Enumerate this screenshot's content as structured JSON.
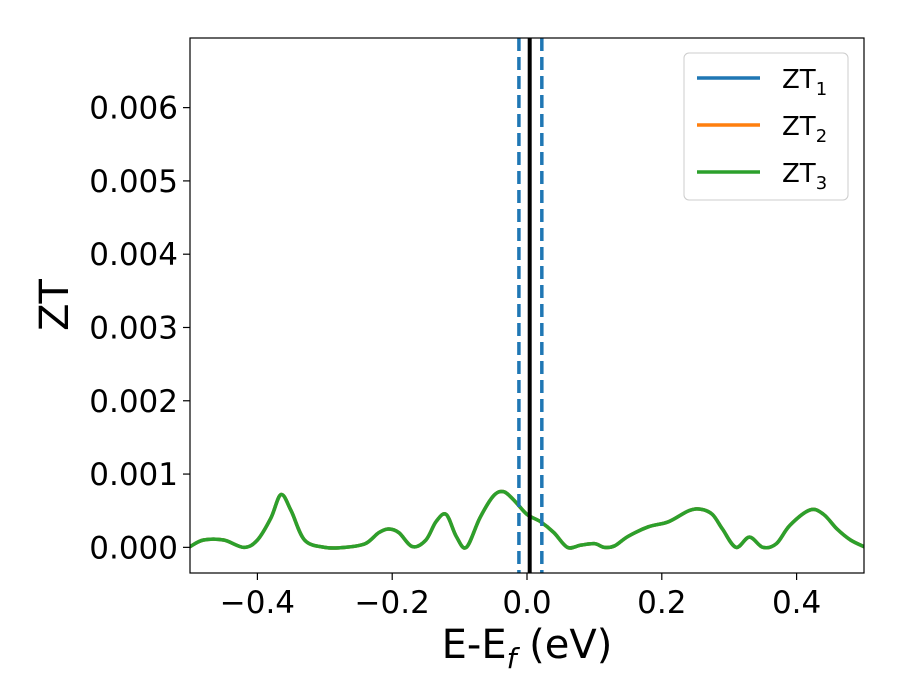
{
  "chart_data": {
    "type": "line",
    "title": "",
    "xlabel": {
      "main": "E-E",
      "sub": "f",
      "tail": " (eV)"
    },
    "ylabel": "ZT",
    "xlim": [
      -0.5,
      0.5
    ],
    "ylim": [
      -0.00035,
      0.00695
    ],
    "x_ticks": [
      -0.4,
      -0.2,
      0.0,
      0.2,
      0.4
    ],
    "x_tick_labels": [
      "−0.4",
      "−0.2",
      "0.0",
      "0.2",
      "0.4"
    ],
    "y_ticks": [
      0,
      0.001,
      0.002,
      0.003,
      0.004,
      0.005,
      0.006
    ],
    "y_tick_labels": [
      "0.000",
      "0.001",
      "0.002",
      "0.003",
      "0.004",
      "0.005",
      "0.006"
    ],
    "grid": false,
    "legend_position": "top-right",
    "series": [
      {
        "name": "ZT",
        "sub": "1",
        "color": "#1f77b4",
        "x": [
          -0.5,
          -0.48,
          -0.45,
          -0.42,
          -0.4,
          -0.38,
          -0.365,
          -0.35,
          -0.33,
          -0.3,
          -0.27,
          -0.24,
          -0.22,
          -0.205,
          -0.19,
          -0.17,
          -0.15,
          -0.135,
          -0.12,
          -0.105,
          -0.09,
          -0.07,
          -0.05,
          -0.035,
          -0.02,
          0.0,
          0.02,
          0.04,
          0.06,
          0.08,
          0.1,
          0.115,
          0.13,
          0.15,
          0.18,
          0.21,
          0.24,
          0.258,
          0.275,
          0.29,
          0.31,
          0.33,
          0.35,
          0.37,
          0.39,
          0.42,
          0.44,
          0.46,
          0.48,
          0.5
        ],
        "y": [
          1e-05,
          0.0001,
          0.0001,
          0.0,
          0.0001,
          0.0004,
          0.00072,
          0.0005,
          0.0001,
          0.0,
          0.0,
          5e-05,
          0.0002,
          0.00025,
          0.0002,
          1e-05,
          0.0001,
          0.00035,
          0.00045,
          0.00015,
          0.0,
          0.0004,
          0.0007,
          0.00076,
          0.00065,
          0.00045,
          0.00035,
          0.0002,
          0.0,
          3e-05,
          5e-05,
          0.0,
          2e-05,
          0.00015,
          0.00028,
          0.00035,
          0.0005,
          0.00052,
          0.00045,
          0.00025,
          0.0,
          0.00014,
          0.0,
          5e-05,
          0.0003,
          0.00051,
          0.00045,
          0.00025,
          0.0001,
          1e-05
        ]
      },
      {
        "name": "ZT",
        "sub": "2",
        "color": "#ff7f0e",
        "x": [
          -0.5,
          -0.48,
          -0.45,
          -0.42,
          -0.4,
          -0.38,
          -0.365,
          -0.35,
          -0.33,
          -0.3,
          -0.27,
          -0.24,
          -0.22,
          -0.205,
          -0.19,
          -0.17,
          -0.15,
          -0.135,
          -0.12,
          -0.105,
          -0.09,
          -0.07,
          -0.05,
          -0.035,
          -0.02,
          0.0,
          0.02,
          0.04,
          0.06,
          0.08,
          0.1,
          0.115,
          0.13,
          0.15,
          0.18,
          0.21,
          0.24,
          0.258,
          0.275,
          0.29,
          0.31,
          0.33,
          0.35,
          0.37,
          0.39,
          0.42,
          0.44,
          0.46,
          0.48,
          0.5
        ],
        "y": [
          1e-05,
          0.0001,
          0.0001,
          0.0,
          0.0001,
          0.0004,
          0.00072,
          0.0005,
          0.0001,
          0.0,
          0.0,
          5e-05,
          0.0002,
          0.00025,
          0.0002,
          1e-05,
          0.0001,
          0.00035,
          0.00045,
          0.00015,
          0.0,
          0.0004,
          0.0007,
          0.00076,
          0.00065,
          0.00045,
          0.00035,
          0.0002,
          0.0,
          3e-05,
          5e-05,
          0.0,
          2e-05,
          0.00015,
          0.00028,
          0.00035,
          0.0005,
          0.00052,
          0.00045,
          0.00025,
          0.0,
          0.00014,
          0.0,
          5e-05,
          0.0003,
          0.00051,
          0.00045,
          0.00025,
          0.0001,
          1e-05
        ]
      },
      {
        "name": "ZT",
        "sub": "3",
        "color": "#2ca02c",
        "x": [
          -0.5,
          -0.48,
          -0.45,
          -0.42,
          -0.4,
          -0.38,
          -0.365,
          -0.35,
          -0.33,
          -0.3,
          -0.27,
          -0.24,
          -0.22,
          -0.205,
          -0.19,
          -0.17,
          -0.15,
          -0.135,
          -0.12,
          -0.105,
          -0.09,
          -0.07,
          -0.05,
          -0.035,
          -0.02,
          0.0,
          0.02,
          0.04,
          0.06,
          0.08,
          0.1,
          0.115,
          0.13,
          0.15,
          0.18,
          0.21,
          0.24,
          0.258,
          0.275,
          0.29,
          0.31,
          0.33,
          0.35,
          0.37,
          0.39,
          0.42,
          0.44,
          0.46,
          0.48,
          0.5
        ],
        "y": [
          1e-05,
          0.0001,
          0.0001,
          0.0,
          0.0001,
          0.0004,
          0.00072,
          0.0005,
          0.0001,
          0.0,
          0.0,
          5e-05,
          0.0002,
          0.00025,
          0.0002,
          1e-05,
          0.0001,
          0.00035,
          0.00045,
          0.00015,
          0.0,
          0.0004,
          0.0007,
          0.00076,
          0.00065,
          0.00045,
          0.00035,
          0.0002,
          0.0,
          3e-05,
          5e-05,
          0.0,
          2e-05,
          0.00015,
          0.00028,
          0.00035,
          0.0005,
          0.00052,
          0.00045,
          0.00025,
          0.0,
          0.00014,
          0.0,
          5e-05,
          0.0003,
          0.00051,
          0.00045,
          0.00025,
          0.0001,
          1e-05
        ]
      }
    ],
    "vertical_lines": [
      {
        "x": -0.012,
        "style": "dashed",
        "color": "#1f77b4"
      },
      {
        "x": 0.022,
        "style": "dashed",
        "color": "#1f77b4"
      },
      {
        "x": 0.004,
        "style": "solid",
        "color": "#000000"
      }
    ]
  }
}
